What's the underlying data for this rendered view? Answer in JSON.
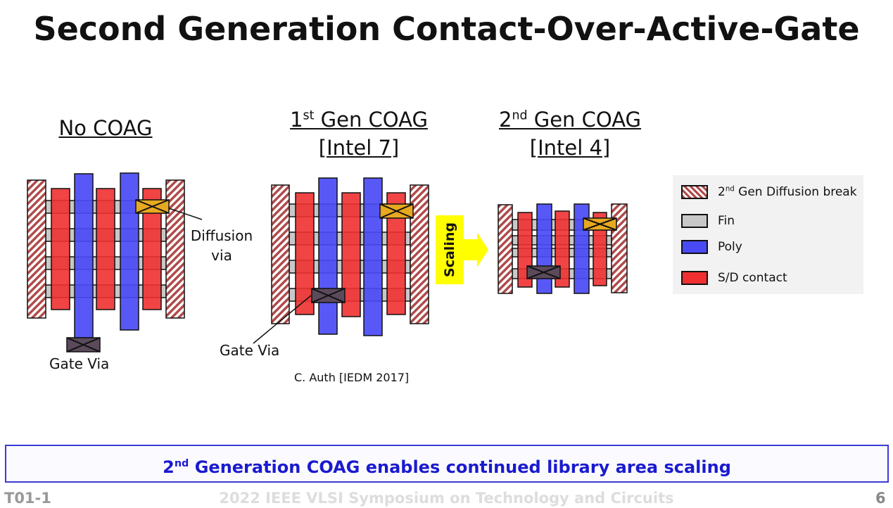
{
  "title": "Second Generation Contact-Over-Active-Gate",
  "diagrams": {
    "no_coag": {
      "title": "No COAG",
      "diffusion_via_label_1": "Diffusion",
      "diffusion_via_label_2": "via",
      "gate_via_label": "Gate Via"
    },
    "first_gen": {
      "title_prefix": "1",
      "title_sup": "st",
      "title_rest": " Gen COAG",
      "subtitle": "[Intel 7]",
      "gate_via_label": "Gate Via",
      "citation": "C. Auth [IEDM 2017]"
    },
    "second_gen": {
      "title_prefix": "2",
      "title_sup": "nd",
      "title_rest": " Gen COAG",
      "subtitle": "[Intel 4]"
    },
    "scaling_label": "Scaling"
  },
  "legend": {
    "items": [
      {
        "prefix": "2",
        "sup": "nd",
        "label": " Gen Diffusion break",
        "color": "#b04a4a"
      },
      {
        "label": "Fin",
        "color": "#c8c8c8"
      },
      {
        "label": "Poly",
        "color": "#4a4af5"
      },
      {
        "label": "S/D contact",
        "color": "#f03030"
      }
    ]
  },
  "banner": {
    "prefix": "2",
    "sup": "nd",
    "text": " Generation COAG enables continued library area scaling"
  },
  "footer": {
    "left": "T01-1",
    "center": "2022 IEEE VLSI Symposium on Technology and Circuits",
    "page": "6"
  },
  "colors": {
    "poly": "#4a4af5",
    "sd_contact": "#f03030",
    "fin": "#c8c8c8",
    "diffusion_via": "#e8a820",
    "gate_via": "#5a4a5a",
    "scaling": "#ffff00",
    "banner_text": "#1a1ad0"
  }
}
